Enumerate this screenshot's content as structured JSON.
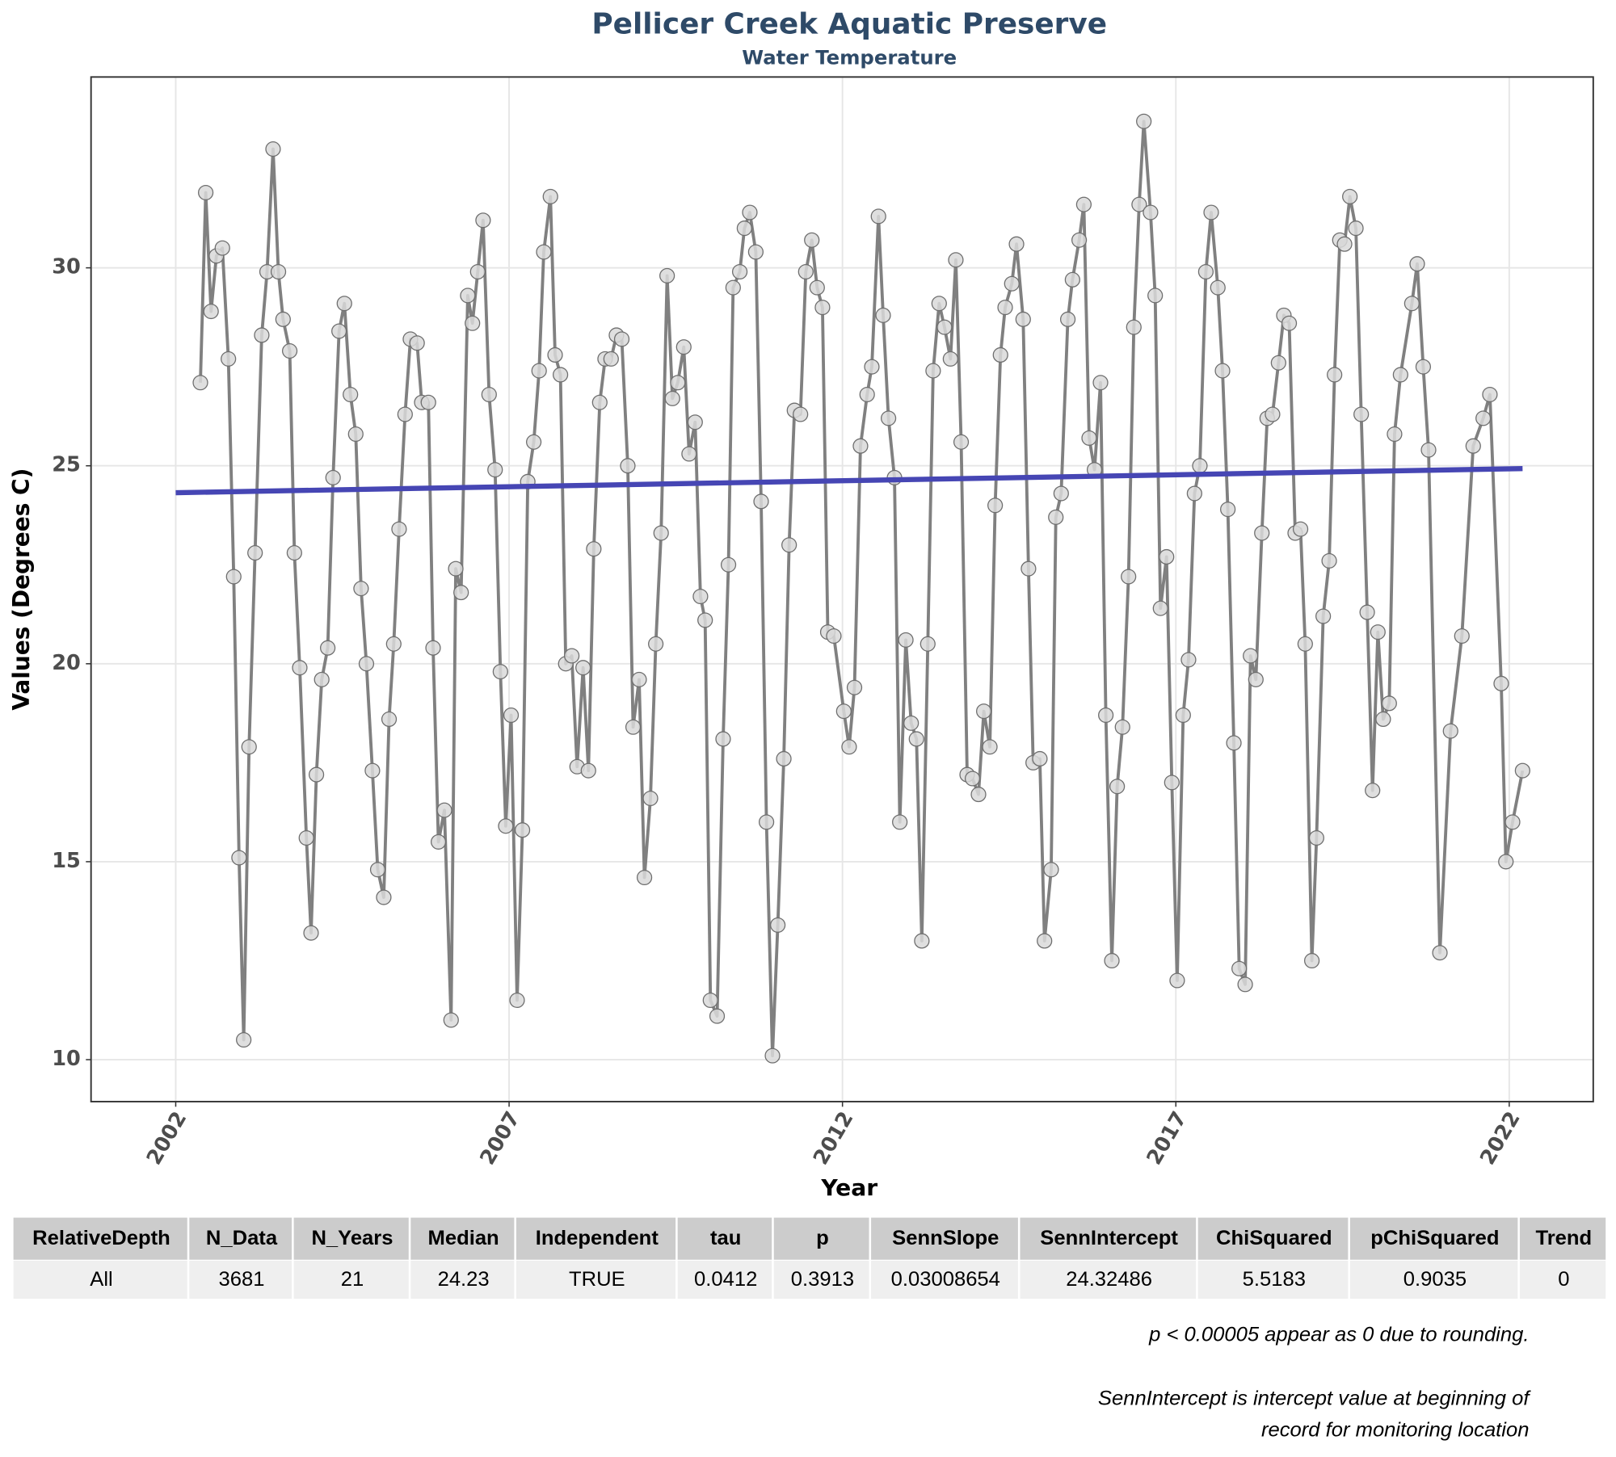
{
  "chart_data": {
    "type": "line",
    "title": "Pellicer Creek Aquatic Preserve",
    "subtitle": "Water Temperature",
    "x_label": "Year",
    "y_label": "Values (Degrees C)",
    "color": "#808080",
    "x": [
      2002.37,
      2002.45,
      2002.53,
      2002.61,
      2002.7,
      2002.79,
      2002.87,
      2002.95,
      2003.02,
      2003.1,
      2003.19,
      2003.29,
      2003.37,
      2003.46,
      2003.54,
      2003.61,
      2003.71,
      2003.78,
      2003.86,
      2003.96,
      2004.03,
      2004.11,
      2004.19,
      2004.28,
      2004.36,
      2004.45,
      2004.53,
      2004.62,
      2004.7,
      2004.78,
      2004.86,
      2004.95,
      2005.03,
      2005.12,
      2005.2,
      2005.27,
      2005.35,
      2005.44,
      2005.52,
      2005.62,
      2005.69,
      2005.79,
      2005.86,
      2005.94,
      2006.03,
      2006.13,
      2006.2,
      2006.28,
      2006.38,
      2006.45,
      2006.53,
      2006.61,
      2006.7,
      2006.79,
      2006.87,
      2006.95,
      2007.03,
      2007.12,
      2007.2,
      2007.28,
      2007.37,
      2007.45,
      2007.52,
      2007.62,
      2007.69,
      2007.77,
      2007.85,
      2007.94,
      2008.02,
      2008.11,
      2008.19,
      2008.27,
      2008.36,
      2008.44,
      2008.53,
      2008.61,
      2008.69,
      2008.78,
      2008.86,
      2008.95,
      2009.03,
      2009.12,
      2009.2,
      2009.28,
      2009.37,
      2009.45,
      2009.53,
      2009.62,
      2009.7,
      2009.79,
      2009.87,
      2009.94,
      2010.02,
      2010.12,
      2010.21,
      2010.29,
      2010.36,
      2010.46,
      2010.53,
      2010.61,
      2010.7,
      2010.78,
      2010.86,
      2010.95,
      2011.03,
      2011.12,
      2011.2,
      2011.28,
      2011.37,
      2011.45,
      2011.54,
      2011.62,
      2011.7,
      2011.78,
      2011.87,
      2012.02,
      2012.1,
      2012.18,
      2012.27,
      2012.37,
      2012.44,
      2012.54,
      2012.61,
      2012.69,
      2012.78,
      2012.86,
      2012.95,
      2013.03,
      2013.11,
      2013.19,
      2013.28,
      2013.36,
      2013.45,
      2013.53,
      2013.62,
      2013.7,
      2013.78,
      2013.87,
      2013.95,
      2014.04,
      2014.12,
      2014.21,
      2014.29,
      2014.37,
      2014.44,
      2014.54,
      2014.61,
      2014.71,
      2014.79,
      2014.86,
      2014.96,
      2015.03,
      2015.13,
      2015.2,
      2015.28,
      2015.38,
      2015.45,
      2015.55,
      2015.62,
      2015.7,
      2015.78,
      2015.87,
      2015.95,
      2016.04,
      2016.12,
      2016.2,
      2016.29,
      2016.37,
      2016.45,
      2016.52,
      2016.62,
      2016.69,
      2016.77,
      2016.86,
      2016.94,
      2017.02,
      2017.11,
      2017.19,
      2017.28,
      2017.36,
      2017.45,
      2017.53,
      2017.63,
      2017.7,
      2017.78,
      2017.87,
      2017.95,
      2018.04,
      2018.12,
      2018.2,
      2018.29,
      2018.37,
      2018.45,
      2018.54,
      2018.62,
      2018.7,
      2018.79,
      2018.87,
      2018.94,
      2019.04,
      2019.11,
      2019.21,
      2019.3,
      2019.38,
      2019.46,
      2019.53,
      2019.61,
      2019.7,
      2019.78,
      2019.87,
      2019.95,
      2020.03,
      2020.11,
      2020.2,
      2020.28,
      2020.37,
      2020.54,
      2020.62,
      2020.71,
      2020.79,
      2020.96,
      2021.12,
      2021.29,
      2021.46,
      2021.61,
      2021.71,
      2021.88,
      2021.95,
      2022.05,
      2022.2
    ],
    "values": [
      27.1,
      31.9,
      28.9,
      30.3,
      30.5,
      27.7,
      22.2,
      15.1,
      10.5,
      17.9,
      22.8,
      28.3,
      29.9,
      33.0,
      29.9,
      28.7,
      27.9,
      22.8,
      19.9,
      15.6,
      13.2,
      17.2,
      19.6,
      20.4,
      24.7,
      28.4,
      29.1,
      26.8,
      25.8,
      21.9,
      20.0,
      17.3,
      14.8,
      14.1,
      18.6,
      20.5,
      23.4,
      26.3,
      28.2,
      28.1,
      26.6,
      26.6,
      20.4,
      15.5,
      16.3,
      11.0,
      22.4,
      21.8,
      29.3,
      28.6,
      29.9,
      31.2,
      26.8,
      24.9,
      19.8,
      15.9,
      18.7,
      11.5,
      15.8,
      24.6,
      25.6,
      27.4,
      30.4,
      31.8,
      27.8,
      27.3,
      20.0,
      20.2,
      17.4,
      19.9,
      17.3,
      22.9,
      26.6,
      27.7,
      27.7,
      28.3,
      28.2,
      25.0,
      18.4,
      19.6,
      14.6,
      16.6,
      20.5,
      23.3,
      29.8,
      26.7,
      27.1,
      28.0,
      25.3,
      26.1,
      21.7,
      21.1,
      11.5,
      11.1,
      18.1,
      22.5,
      29.5,
      29.9,
      31.0,
      31.4,
      30.4,
      24.1,
      16.0,
      10.1,
      13.4,
      17.6,
      23.0,
      26.4,
      26.3,
      29.9,
      30.7,
      29.5,
      29.0,
      20.8,
      20.7,
      18.8,
      17.9,
      19.4,
      25.5,
      26.8,
      27.5,
      31.3,
      28.8,
      26.2,
      24.7,
      16.0,
      20.6,
      18.5,
      18.1,
      13.0,
      20.5,
      27.4,
      29.1,
      28.5,
      27.7,
      30.2,
      25.6,
      17.2,
      17.1,
      16.7,
      18.8,
      17.9,
      24.0,
      27.8,
      29.0,
      29.6,
      30.6,
      28.7,
      22.4,
      17.5,
      17.6,
      13.0,
      14.8,
      23.7,
      24.3,
      28.7,
      29.7,
      30.7,
      31.6,
      25.7,
      24.9,
      27.1,
      18.7,
      12.5,
      16.9,
      18.4,
      22.2,
      28.5,
      31.6,
      33.7,
      31.4,
      29.3,
      21.4,
      22.7,
      17.0,
      12.0,
      18.7,
      20.1,
      24.3,
      25.0,
      29.9,
      31.4,
      29.5,
      27.4,
      23.9,
      18.0,
      12.3,
      11.9,
      20.2,
      19.6,
      23.3,
      26.2,
      26.3,
      27.6,
      28.8,
      28.6,
      23.3,
      23.4,
      20.5,
      12.5,
      15.6,
      21.2,
      22.6,
      27.3,
      30.7,
      30.6,
      31.8,
      31.0,
      26.3,
      21.3,
      16.8,
      20.8,
      18.6,
      19.0,
      25.8,
      27.3,
      29.1,
      30.1,
      27.5,
      25.4,
      12.7,
      18.3,
      20.7,
      25.5,
      26.2,
      26.8,
      19.5,
      15.0,
      16.0,
      17.3
    ],
    "trend": {
      "color": "#4646b4",
      "x": [
        2002.0,
        2022.2
      ],
      "values": [
        24.32,
        24.93
      ]
    },
    "xlim": [
      2000.73,
      2023.26
    ],
    "ylim": [
      8.94,
      34.82
    ],
    "xticks": [
      2002,
      2007,
      2012,
      2017,
      2022
    ],
    "yticks": [
      10,
      15,
      20,
      25,
      30
    ],
    "grid": true
  },
  "table": {
    "header": [
      "RelativeDepth",
      "N_Data",
      "N_Years",
      "Median",
      "Independent",
      "tau",
      "p",
      "SennSlope",
      "SennIntercept",
      "ChiSquared",
      "pChiSquared",
      "Trend"
    ],
    "rows": [
      [
        "All",
        3681,
        21,
        24.23,
        "TRUE",
        0.0412,
        0.3913,
        0.03008654,
        24.32486,
        5.5183,
        0.9035,
        0
      ]
    ]
  },
  "notes": [
    "p < 0.00005 appear as 0 due to rounding.",
    "SennIntercept is intercept value at beginning of",
    "record for monitoring location"
  ]
}
